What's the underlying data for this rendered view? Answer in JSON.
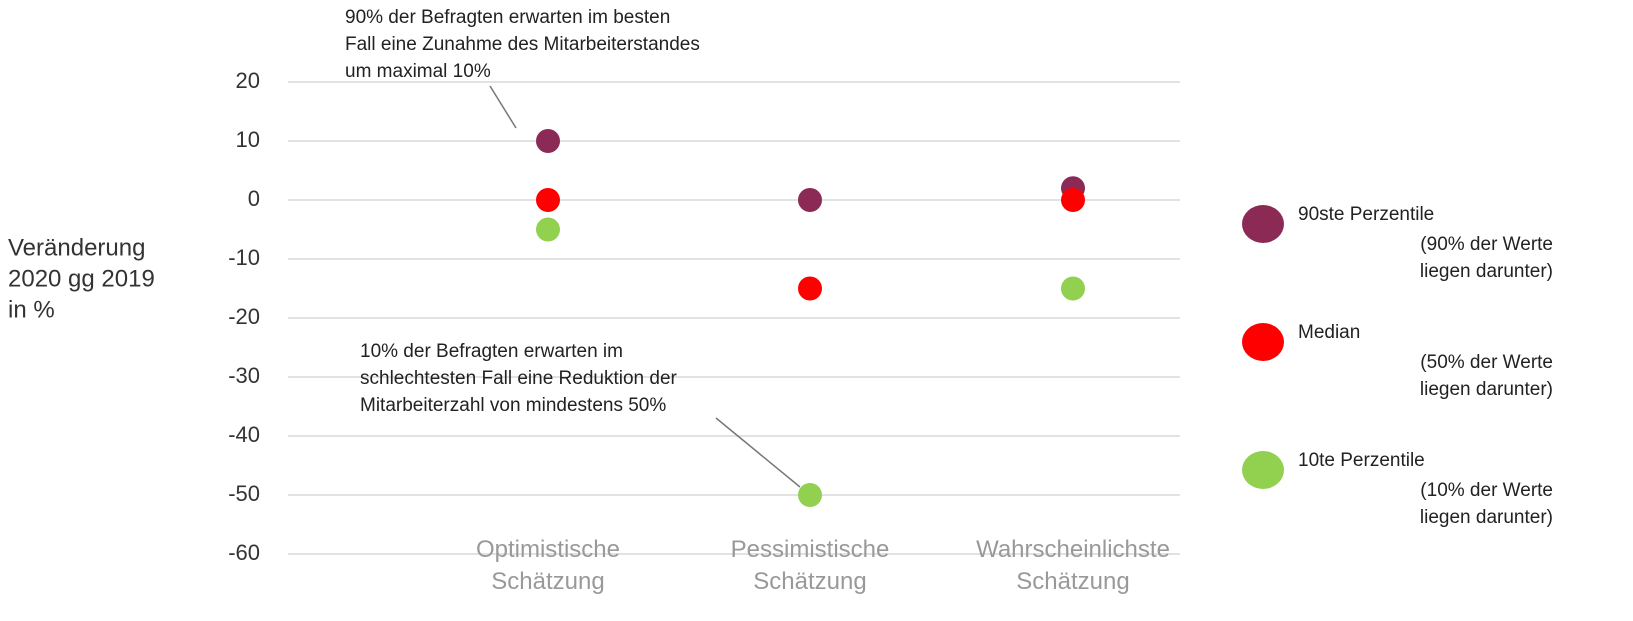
{
  "chart_data": {
    "type": "scatter",
    "y_label": [
      "Veränderung",
      "2020 gg 2019",
      "in %"
    ],
    "categories": [
      "Optimistische Schätzung",
      "Pessimistische Schätzung",
      "Wahrscheinlichste Schätzung"
    ],
    "series": [
      {
        "name": "90ste Perzentile",
        "color": "#8b2a55",
        "values": [
          10,
          0,
          2
        ],
        "note": [
          "(90% der Werte",
          "liegen darunter)"
        ]
      },
      {
        "name": "Median",
        "color": "#ff0000",
        "values": [
          0,
          -15,
          0
        ],
        "note": [
          "(50% der Werte",
          "liegen darunter)"
        ]
      },
      {
        "name": "10te Perzentile",
        "color": "#92d050",
        "values": [
          -5,
          -50,
          -15
        ],
        "note": [
          "(10% der Werte",
          "liegen darunter)"
        ]
      }
    ],
    "ylim": [
      -60,
      20
    ],
    "yticks": [
      -60,
      -50,
      -40,
      -30,
      -20,
      -10,
      0,
      10,
      20
    ],
    "grid": true,
    "annotations": [
      {
        "lines": [
          "90% der Befragten erwarten im besten",
          "Fall eine Zunahme des Mitarbeiterstandes",
          "um maximal 10%"
        ]
      },
      {
        "lines": [
          "10% der Befragten erwarten im",
          "schlechtesten Fall eine Reduktion der",
          "Mitarbeiterzahl von mindestens 50%"
        ]
      }
    ]
  }
}
